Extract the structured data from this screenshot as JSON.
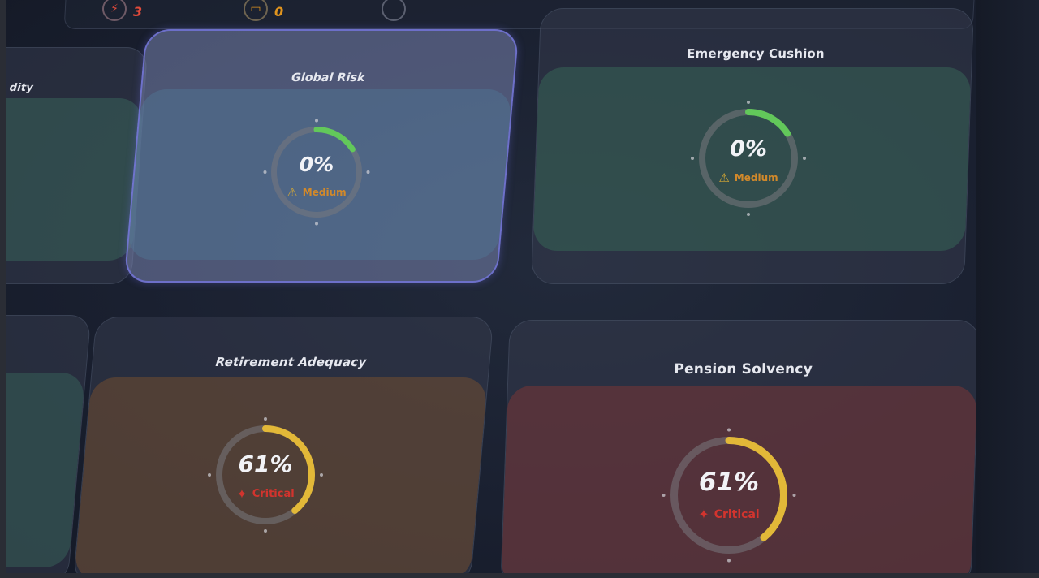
{
  "top_stats": [
    {
      "value": "3",
      "color": "#e04a3a",
      "icon": "bolt-icon"
    },
    {
      "value": "0",
      "color": "#e0941e",
      "icon": "box-icon"
    },
    {
      "value": "",
      "color": "#8a8ea0",
      "icon": "circle-icon"
    }
  ],
  "cards": {
    "partial_left_top": {
      "title": "dity"
    },
    "global_risk": {
      "title": "Global Risk",
      "value": "0%",
      "status": "Medium",
      "progress": 0.16
    },
    "emergency_cushion": {
      "title": "Emergency Cushion",
      "value": "0%",
      "status": "Medium",
      "progress": 0.16
    },
    "retirement_adequacy": {
      "title": "Retirement Adequacy",
      "value": "61%",
      "status": "Critical",
      "progress": 0.39
    },
    "pension_solvency": {
      "title": "Pension Solvency",
      "value": "61%",
      "status": "Critical",
      "progress": 0.39
    }
  },
  "colors": {
    "green": "#62c85a",
    "yellow": "#e2b838",
    "medium": "#d2892a",
    "critical": "#d2342e",
    "selected_border": "#7878e6"
  }
}
